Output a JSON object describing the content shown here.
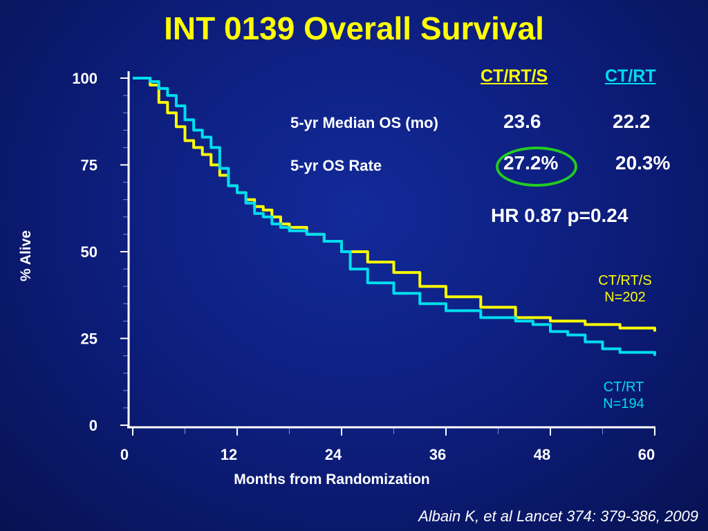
{
  "title": "INT 0139 Overall Survival",
  "chart_data": {
    "type": "line",
    "xlabel": "Months from Randomization",
    "ylabel": "% Alive",
    "xlim": [
      0,
      60
    ],
    "ylim": [
      0,
      100
    ],
    "x_ticks": [
      "0",
      "12",
      "24",
      "36",
      "48",
      "60"
    ],
    "y_ticks": [
      "0",
      "25",
      "50",
      "75",
      "100"
    ],
    "series": [
      {
        "name": "CT/RT/S",
        "color": "#ffff00",
        "x": [
          0,
          1,
          2,
          3,
          4,
          5,
          6,
          7,
          8,
          9,
          10,
          11,
          12,
          13,
          14,
          15,
          16,
          17,
          18,
          20,
          22,
          24,
          27,
          30,
          33,
          36,
          40,
          44,
          48,
          52,
          56,
          60
        ],
        "y": [
          100,
          100,
          98,
          93,
          90,
          86,
          82,
          80,
          78,
          75,
          72,
          69,
          67,
          65,
          63,
          62,
          60,
          58,
          57,
          55,
          53,
          50,
          47,
          44,
          40,
          37,
          34,
          31,
          30,
          29,
          28,
          27
        ]
      },
      {
        "name": "CT/RT",
        "color": "#00ddee",
        "x": [
          0,
          1,
          2,
          3,
          4,
          5,
          6,
          7,
          8,
          9,
          10,
          11,
          12,
          13,
          14,
          15,
          16,
          17,
          18,
          20,
          22,
          24,
          25,
          27,
          30,
          33,
          36,
          40,
          44,
          46,
          48,
          50,
          52,
          54,
          56,
          58,
          60
        ],
        "y": [
          100,
          100,
          99,
          97,
          95,
          92,
          88,
          85,
          83,
          80,
          74,
          69,
          67,
          64,
          61,
          60,
          58,
          57,
          56,
          55,
          53,
          50,
          45,
          41,
          38,
          35,
          33,
          31,
          30,
          29,
          27,
          26,
          24,
          22,
          21,
          21,
          20
        ]
      }
    ]
  },
  "stats": {
    "header_ctrts": "CT/RT/S",
    "header_ctrt": "CT/RT",
    "median_label": "5-yr Median OS (mo)",
    "median_ctrts": "23.6",
    "median_ctrt": "22.2",
    "rate_label": "5-yr OS Rate",
    "rate_ctrts": "27.2%",
    "rate_ctrt": "20.3%",
    "hr_text": "HR 0.87 p=0.24"
  },
  "legend": {
    "ctrts_name": "CT/RT/S",
    "ctrts_n": "N=202",
    "ctrt_name": "CT/RT",
    "ctrt_n": "N=194"
  },
  "colors": {
    "ctrts": "#ffff00",
    "ctrt": "#00ddee",
    "highlight": "#22cc22"
  },
  "citation": "Albain K, et al Lancet 374: 379-386, 2009"
}
